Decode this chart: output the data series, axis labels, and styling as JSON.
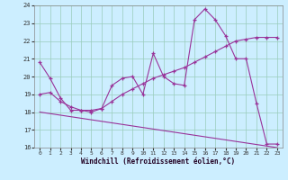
{
  "xlabel": "Windchill (Refroidissement éolien,°C)",
  "background_color": "#cceeff",
  "grid_color": "#99ccbb",
  "line_color": "#993399",
  "xlim": [
    -0.5,
    23.5
  ],
  "ylim": [
    16,
    24
  ],
  "xticks": [
    0,
    1,
    2,
    3,
    4,
    5,
    6,
    7,
    8,
    9,
    10,
    11,
    12,
    13,
    14,
    15,
    16,
    17,
    18,
    19,
    20,
    21,
    22,
    23
  ],
  "yticks": [
    16,
    17,
    18,
    19,
    20,
    21,
    22,
    23,
    24
  ],
  "line1_x": [
    0,
    1,
    2,
    3,
    4,
    5,
    6,
    7,
    8,
    9,
    10,
    11,
    12,
    13,
    14,
    15,
    16,
    17,
    18,
    19,
    20,
    21,
    22,
    23
  ],
  "line1_y": [
    20.8,
    19.9,
    18.8,
    18.1,
    18.1,
    18.0,
    18.2,
    19.5,
    19.9,
    20.0,
    19.0,
    21.3,
    20.0,
    19.6,
    19.5,
    23.2,
    23.8,
    23.2,
    22.3,
    21.0,
    21.0,
    18.5,
    16.2,
    16.2
  ],
  "line2_x": [
    0,
    1,
    2,
    3,
    4,
    5,
    6,
    7,
    8,
    9,
    10,
    11,
    12,
    13,
    14,
    15,
    16,
    17,
    18,
    19,
    20,
    21,
    22,
    23
  ],
  "line2_y": [
    19.0,
    19.1,
    18.6,
    18.3,
    18.1,
    18.1,
    18.2,
    18.6,
    19.0,
    19.3,
    19.6,
    19.9,
    20.1,
    20.3,
    20.5,
    20.8,
    21.1,
    21.4,
    21.7,
    22.0,
    22.1,
    22.2,
    22.2,
    22.2
  ],
  "line3_x": [
    0,
    23
  ],
  "line3_y": [
    18.0,
    16.0
  ]
}
